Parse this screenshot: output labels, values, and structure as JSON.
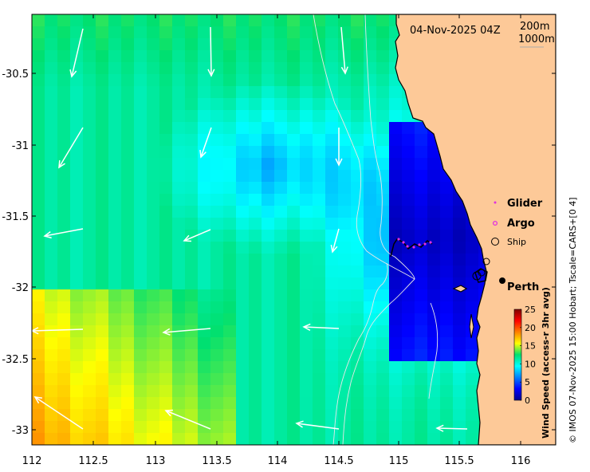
{
  "map": {
    "timestamp": "04-Nov-2025 04Z",
    "contours": [
      "200m",
      "1000m"
    ],
    "x_ticks": [
      "112",
      "112.5",
      "113",
      "113.5",
      "114",
      "114.5",
      "115",
      "115.5",
      "116"
    ],
    "y_ticks": [
      "-30.5",
      "-31",
      "-31.5",
      "-32",
      "-32.5",
      "-33"
    ],
    "legend": {
      "glider": "Glider",
      "argo": "Argo",
      "ship": "Ship"
    },
    "place_label": "Perth",
    "colorbar": {
      "title": "Wind Speed (access-r 3hr avg)",
      "ticks": [
        "0",
        "5",
        "10",
        "15",
        "20",
        "25"
      ],
      "min": 0,
      "max": 25,
      "color_scale": "jet"
    },
    "copyright": "© IMOS 07-Nov-2025 15:00 Hobart; Tscale=CARS+[0 4]",
    "colors": {
      "land": "#fdc998",
      "arrow": "#ffffff",
      "glider": "#e030e0",
      "argo": "#e030e0"
    }
  }
}
